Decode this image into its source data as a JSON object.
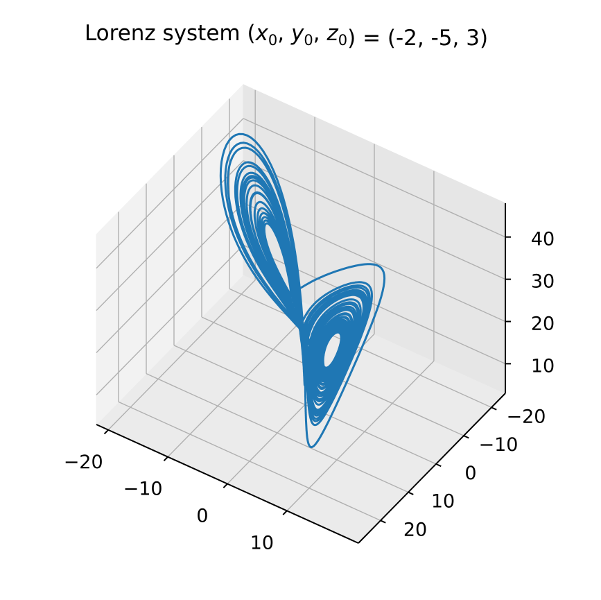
{
  "chart_data": {
    "type": "line",
    "projection": "3d",
    "title": {
      "prefix": "Lorenz system (",
      "math": "x0, y0, z0",
      "suffix": ") = (-2, -5, 3)"
    },
    "initial_conditions": {
      "x0": -2,
      "y0": -5,
      "z0": 3
    },
    "xlabel": "",
    "ylabel": "",
    "zlabel": "",
    "xlim": [
      -22,
      22
    ],
    "ylim": [
      -25,
      28
    ],
    "zlim": [
      3,
      48
    ],
    "xticks": [
      -20,
      -10,
      0,
      10
    ],
    "yticks": [
      -20,
      -10,
      0,
      10,
      20
    ],
    "zticks": [
      10,
      20,
      30,
      40
    ],
    "xtick_labels": [
      "−20",
      "−10",
      "0",
      "10"
    ],
    "ytick_labels": [
      "−20",
      "−10",
      "0",
      "10",
      "20"
    ],
    "ztick_labels": [
      "10",
      "20",
      "30",
      "40"
    ],
    "grid": true,
    "series": [
      {
        "color": "#1f77b4",
        "curve": "lorenz",
        "parameters": {
          "sigma": 10,
          "rho": 28,
          "beta": 2.6667
        },
        "dt": 0.005,
        "steps": 8000
      }
    ]
  },
  "colors": {
    "line": "#1f77b4",
    "pane_x": "#f2f2f2",
    "pane_y": "#e6e6e6",
    "pane_z": "#ebebeb",
    "grid": "#b0b0b0",
    "axis": "#000000"
  }
}
